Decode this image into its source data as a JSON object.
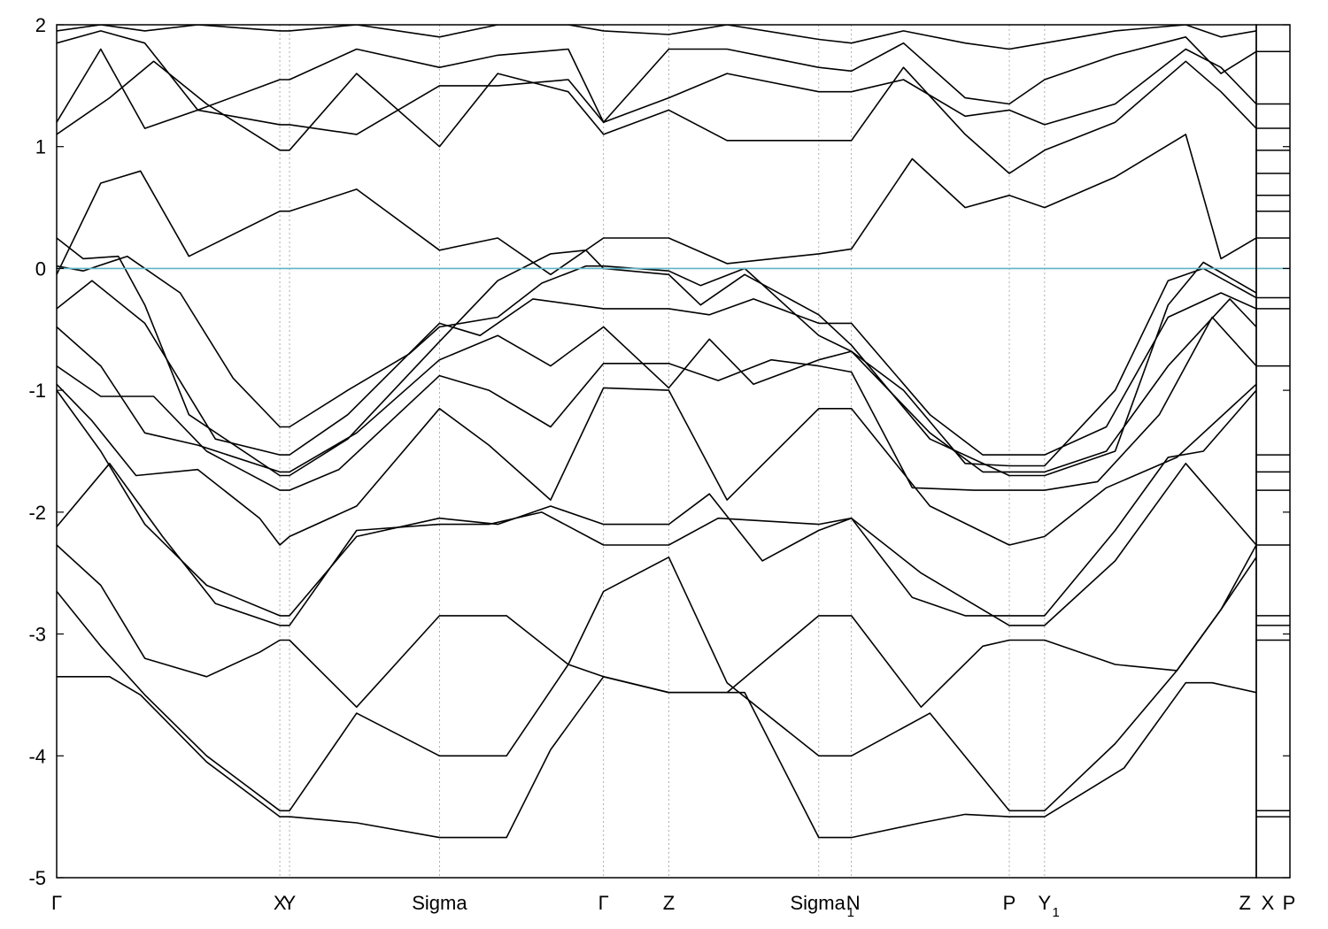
{
  "chart_data": {
    "type": "line",
    "title": "",
    "xlabel": "",
    "ylabel": "",
    "ylim": [
      -5,
      2
    ],
    "xlim": [
      0,
      13.6
    ],
    "yticks": [
      -5,
      -4,
      -3,
      -2,
      -1,
      0,
      1,
      2
    ],
    "grid": "vertical dotted lines at high-symmetry points",
    "legend": "none",
    "fermi_level": 0,
    "colors": {
      "bands": "#000000",
      "fermi": "#5fb4c8",
      "grid": "#9a9a9a",
      "frame": "#000000"
    },
    "kpoints": [
      {
        "x": 0.0,
        "label": "Γ",
        "sub": ""
      },
      {
        "x": 2.53,
        "label": "X",
        "sub": ""
      },
      {
        "x": 2.64,
        "label": "Y",
        "sub": ""
      },
      {
        "x": 4.34,
        "label": "Sigma",
        "sub": ""
      },
      {
        "x": 6.2,
        "label": "Γ",
        "sub": ""
      },
      {
        "x": 6.94,
        "label": "Z",
        "sub": ""
      },
      {
        "x": 8.64,
        "label": "Sigma",
        "sub": "1"
      },
      {
        "x": 9.01,
        "label": "N",
        "sub": ""
      },
      {
        "x": 10.8,
        "label": "P",
        "sub": ""
      },
      {
        "x": 11.2,
        "label": "Y",
        "sub": "1"
      },
      {
        "x": 13.6,
        "label": "Z",
        "sub": ""
      }
    ],
    "panel2_labels": [
      "X",
      "P"
    ],
    "series": [
      {
        "x": [
          0,
          0.6,
          0.95,
          1.7,
          2.53,
          2.64,
          3.4,
          4.34,
          5.1,
          5.6,
          6.2,
          6.94,
          7.8,
          8.64,
          9.01,
          9.8,
          10.3,
          10.8,
          11.2,
          12.1,
          12.8,
          13.1,
          13.6
        ],
        "values": [
          -3.35,
          -3.35,
          -3.5,
          -4.05,
          -4.5,
          -4.5,
          -4.55,
          -4.67,
          -4.67,
          -3.95,
          -3.35,
          -3.48,
          -3.48,
          -4.67,
          -4.67,
          -4.55,
          -4.48,
          -4.5,
          -4.5,
          -4.1,
          -3.4,
          -3.4,
          -3.48
        ]
      },
      {
        "x": [
          0,
          0.5,
          1.0,
          1.7,
          2.53,
          2.64,
          3.4,
          4.34,
          5.1,
          5.8,
          6.2,
          6.94,
          7.6,
          8.64,
          9.01,
          9.9,
          10.8,
          11.2,
          12.0,
          12.7,
          13.2,
          13.6
        ],
        "values": [
          -2.65,
          -3.1,
          -3.5,
          -4.0,
          -4.45,
          -4.45,
          -3.65,
          -4.0,
          -4.0,
          -3.25,
          -2.65,
          -2.37,
          -3.4,
          -4.0,
          -4.0,
          -3.65,
          -4.45,
          -4.45,
          -3.9,
          -3.3,
          -2.8,
          -2.37
        ]
      },
      {
        "x": [
          0,
          0.5,
          1.0,
          1.7,
          2.3,
          2.53,
          2.64,
          3.4,
          4.34,
          5.1,
          5.8,
          6.2,
          6.94,
          7.6,
          8.64,
          9.01,
          9.8,
          10.5,
          10.8,
          11.2,
          12.0,
          12.7,
          13.2,
          13.6
        ],
        "values": [
          -2.27,
          -2.6,
          -3.2,
          -3.35,
          -3.15,
          -3.05,
          -3.05,
          -3.6,
          -2.85,
          -2.85,
          -3.25,
          -3.35,
          -3.48,
          -3.48,
          -2.85,
          -2.85,
          -3.6,
          -3.1,
          -3.05,
          -3.05,
          -3.25,
          -3.3,
          -2.8,
          -2.27
        ]
      },
      {
        "x": [
          0,
          0.6,
          1.2,
          1.8,
          2.53,
          2.64,
          3.4,
          4.34,
          4.9,
          5.5,
          6.2,
          6.94,
          7.5,
          8.64,
          9.01,
          9.8,
          10.8,
          11.2,
          12.0,
          12.8,
          13.6
        ],
        "values": [
          -2.12,
          -1.6,
          -2.2,
          -2.75,
          -2.93,
          -2.93,
          -2.15,
          -2.1,
          -2.1,
          -2.0,
          -2.27,
          -2.27,
          -2.05,
          -2.1,
          -2.05,
          -2.5,
          -2.93,
          -2.93,
          -2.4,
          -1.6,
          -2.27
        ]
      },
      {
        "x": [
          0,
          0.5,
          1.0,
          1.7,
          2.53,
          2.64,
          3.4,
          4.34,
          5.0,
          5.6,
          6.2,
          6.94,
          7.4,
          8.0,
          8.64,
          9.01,
          9.7,
          10.3,
          10.8,
          11.2,
          12.0,
          12.6,
          13.0,
          13.6
        ],
        "values": [
          -1.0,
          -1.5,
          -2.1,
          -2.6,
          -2.85,
          -2.85,
          -2.2,
          -2.05,
          -2.1,
          -1.95,
          -2.1,
          -2.1,
          -1.85,
          -2.4,
          -2.15,
          -2.05,
          -2.7,
          -2.85,
          -2.85,
          -2.85,
          -2.15,
          -1.55,
          -1.5,
          -1.0
        ]
      },
      {
        "x": [
          0,
          0.4,
          0.9,
          1.6,
          2.3,
          2.53,
          2.64,
          3.4,
          4.34,
          4.9,
          5.6,
          6.2,
          6.94,
          7.6,
          8.64,
          9.01,
          9.9,
          10.8,
          11.2,
          11.9,
          12.7,
          13.6
        ],
        "values": [
          -0.95,
          -1.25,
          -1.7,
          -1.65,
          -2.05,
          -2.27,
          -2.2,
          -1.95,
          -1.15,
          -1.45,
          -1.9,
          -0.98,
          -1.0,
          -1.9,
          -1.15,
          -1.15,
          -1.95,
          -2.27,
          -2.2,
          -1.8,
          -1.55,
          -0.95
        ]
      },
      {
        "x": [
          0,
          0.5,
          1.1,
          1.7,
          2.53,
          2.64,
          3.2,
          4.34,
          4.9,
          5.6,
          6.2,
          6.94,
          7.5,
          8.1,
          8.64,
          9.01,
          9.7,
          10.4,
          10.8,
          11.2,
          11.8,
          12.5,
          13.1,
          13.6
        ],
        "values": [
          -0.8,
          -1.05,
          -1.05,
          -1.5,
          -1.82,
          -1.82,
          -1.65,
          -0.88,
          -1.0,
          -1.3,
          -0.78,
          -0.78,
          -0.92,
          -0.75,
          -0.8,
          -0.85,
          -1.8,
          -1.82,
          -1.82,
          -1.82,
          -1.75,
          -1.2,
          -0.4,
          -0.8
        ]
      },
      {
        "x": [
          0,
          0.5,
          1.0,
          1.6,
          2.53,
          2.64,
          3.4,
          4.34,
          5.0,
          5.6,
          6.2,
          6.94,
          7.4,
          7.9,
          8.64,
          9.01,
          9.9,
          10.5,
          10.8,
          11.2,
          11.9,
          12.6,
          13.3,
          13.6
        ],
        "values": [
          -0.48,
          -0.8,
          -1.35,
          -1.45,
          -1.67,
          -1.67,
          -1.35,
          -0.75,
          -0.55,
          -0.8,
          -0.48,
          -0.98,
          -0.58,
          -0.95,
          -0.75,
          -0.68,
          -1.35,
          -1.67,
          -1.67,
          -1.67,
          -1.5,
          -0.8,
          -0.25,
          -0.48
        ]
      },
      {
        "x": [
          0,
          0.4,
          1.0,
          1.8,
          2.53,
          2.64,
          3.3,
          4.34,
          4.8,
          5.4,
          6.2,
          6.94,
          7.4,
          7.9,
          8.64,
          9.01,
          9.9,
          10.5,
          10.8,
          11.2,
          11.9,
          12.6,
          13.2,
          13.6
        ],
        "values": [
          -0.33,
          -0.1,
          -0.45,
          -1.4,
          -1.53,
          -1.53,
          -1.2,
          -0.45,
          -0.55,
          -0.25,
          -0.33,
          -0.33,
          -0.38,
          -0.25,
          -0.45,
          -0.45,
          -1.2,
          -1.53,
          -1.53,
          -1.53,
          -1.3,
          -0.4,
          -0.2,
          -0.33
        ]
      },
      {
        "x": [
          0,
          0.3,
          0.7,
          1.0,
          1.5,
          2.53,
          2.64,
          3.3,
          4.34,
          5.0,
          5.6,
          6.0,
          6.2,
          6.94,
          7.3,
          7.8,
          8.64,
          9.01,
          9.9,
          10.8,
          11.2,
          12.0,
          12.6,
          13.0,
          13.6
        ],
        "values": [
          0.25,
          0.08,
          0.1,
          -0.3,
          -1.2,
          -1.7,
          -1.7,
          -1.4,
          -0.6,
          -0.1,
          0.12,
          0.15,
          0.0,
          -0.05,
          -0.3,
          -0.05,
          -0.38,
          -0.63,
          -1.4,
          -1.7,
          -1.7,
          -1.5,
          -0.3,
          0.05,
          -0.2
        ]
      },
      {
        "x": [
          0,
          0.3,
          0.8,
          1.4,
          2.0,
          2.53,
          2.64,
          3.3,
          4.0,
          4.34,
          5.0,
          5.5,
          6.0,
          6.2,
          6.94,
          7.3,
          7.8,
          8.64,
          9.01,
          9.6,
          10.3,
          10.8,
          11.2,
          12.0,
          12.6,
          13.0,
          13.6
        ],
        "values": [
          0.02,
          -0.02,
          0.1,
          -0.2,
          -0.9,
          -1.3,
          -1.3,
          -1.0,
          -0.7,
          -0.48,
          -0.4,
          -0.12,
          0.02,
          0.02,
          -0.02,
          -0.14,
          0.0,
          -0.55,
          -0.68,
          -1.0,
          -1.6,
          -1.62,
          -1.62,
          -1.0,
          -0.1,
          0.0,
          -0.24
        ]
      },
      {
        "x": [
          0,
          0.5,
          0.95,
          1.5,
          2.53,
          2.64,
          3.4,
          4.34,
          5.0,
          5.6,
          6.2,
          6.94,
          7.6,
          8.64,
          9.01,
          9.7,
          10.3,
          10.8,
          11.2,
          12.0,
          12.8,
          13.2,
          13.6
        ],
        "values": [
          -0.05,
          0.7,
          0.8,
          0.1,
          0.47,
          0.47,
          0.65,
          0.15,
          0.25,
          -0.05,
          0.25,
          0.25,
          0.04,
          0.12,
          0.16,
          0.9,
          0.5,
          0.6,
          0.5,
          0.75,
          1.1,
          0.08,
          0.25
        ]
      },
      {
        "x": [
          0,
          0.6,
          1.1,
          1.7,
          2.53,
          2.64,
          3.4,
          4.34,
          5.0,
          5.8,
          6.2,
          6.94,
          7.6,
          8.64,
          9.01,
          9.6,
          10.3,
          10.8,
          11.2,
          12.0,
          12.8,
          13.2,
          13.6
        ],
        "values": [
          1.1,
          1.4,
          1.7,
          1.35,
          0.97,
          0.97,
          1.6,
          1.0,
          1.6,
          1.45,
          1.1,
          1.3,
          1.05,
          1.05,
          1.05,
          1.65,
          1.1,
          0.78,
          0.97,
          1.2,
          1.7,
          1.45,
          1.15
        ]
      },
      {
        "x": [
          0,
          0.5,
          1.0,
          1.6,
          2.53,
          2.64,
          3.4,
          4.34,
          5.0,
          5.8,
          6.2,
          6.94,
          7.6,
          8.64,
          9.01,
          9.6,
          10.3,
          10.8,
          11.2,
          12.0,
          12.8,
          13.2,
          13.6
        ],
        "values": [
          1.2,
          1.8,
          1.15,
          1.3,
          1.18,
          1.18,
          1.1,
          1.5,
          1.5,
          1.55,
          1.2,
          1.4,
          1.6,
          1.45,
          1.45,
          1.55,
          1.25,
          1.3,
          1.18,
          1.35,
          1.8,
          1.65,
          1.35
        ]
      },
      {
        "x": [
          0,
          0.5,
          1.0,
          1.6,
          2.53,
          2.64,
          3.4,
          4.34,
          5.0,
          5.8,
          6.2,
          6.94,
          7.6,
          8.64,
          9.01,
          9.6,
          10.3,
          10.8,
          11.2,
          12.0,
          12.8,
          13.2,
          13.6
        ],
        "values": [
          1.85,
          1.95,
          1.85,
          1.3,
          1.55,
          1.55,
          1.8,
          1.65,
          1.75,
          1.8,
          1.2,
          1.8,
          1.8,
          1.65,
          1.62,
          1.85,
          1.4,
          1.35,
          1.55,
          1.75,
          1.9,
          1.6,
          1.78
        ]
      },
      {
        "x": [
          0,
          0.5,
          1.0,
          1.6,
          2.53,
          2.64,
          3.4,
          4.34,
          5.0,
          5.8,
          6.2,
          6.94,
          7.6,
          8.64,
          9.01,
          9.6,
          10.3,
          10.8,
          11.2,
          12.0,
          12.8,
          13.2,
          13.6
        ],
        "values": [
          1.95,
          2.0,
          1.95,
          2.0,
          1.95,
          1.95,
          2.0,
          1.9,
          2.0,
          2.0,
          1.95,
          1.92,
          2.0,
          1.88,
          1.85,
          1.95,
          1.85,
          1.8,
          1.85,
          1.95,
          2.0,
          1.9,
          1.95
        ]
      }
    ],
    "panel2_levels": [
      -1.53,
      -1.67,
      -1.82,
      -2.27,
      -2.85,
      -2.93,
      -3.05,
      -4.45,
      -4.5,
      -0.8,
      -0.33,
      -0.24,
      0.25,
      0.6,
      0.78,
      0.47,
      0.97,
      1.15,
      1.35,
      1.78
    ]
  }
}
